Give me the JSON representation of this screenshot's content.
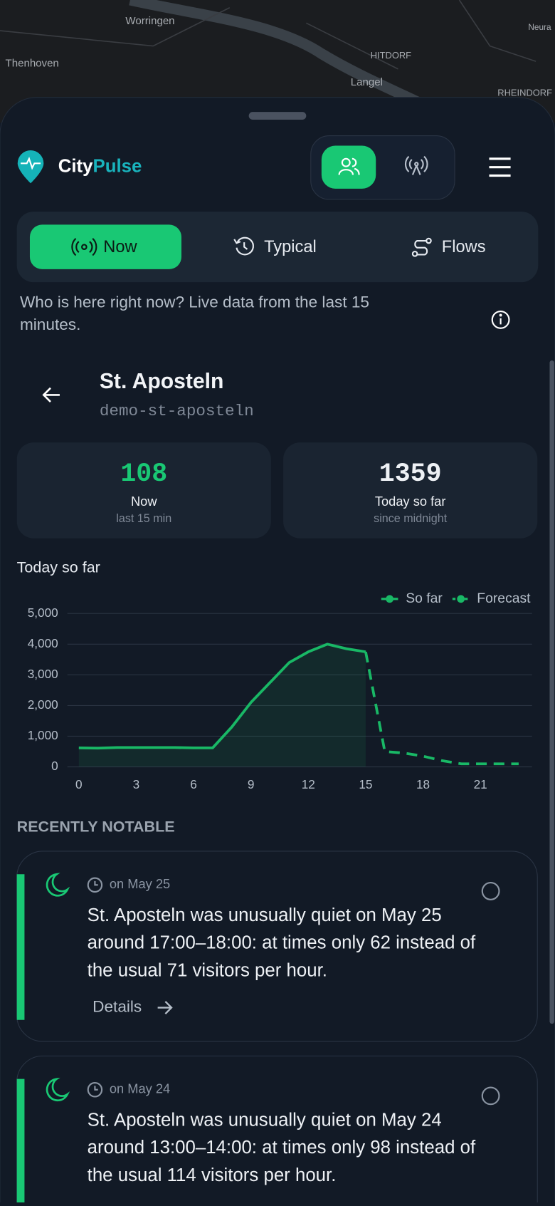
{
  "map": {
    "labels": [
      "Worringen",
      "Thenhoven",
      "HITDORF",
      "Langel",
      "Neura",
      "RHEINDORF"
    ]
  },
  "header": {
    "brand_part1": "City",
    "brand_part2": "Pulse"
  },
  "tabs": [
    "Now",
    "Typical",
    "Flows"
  ],
  "description": "Who is here right now? Live data from the last 15 minutes.",
  "location": {
    "name": "St. Aposteln",
    "id": "demo-st-aposteln"
  },
  "stats": [
    {
      "value": "108",
      "label": "Now",
      "sub": "last 15 min"
    },
    {
      "value": "1359",
      "label": "Today so far",
      "sub": "since midnight"
    }
  ],
  "chart_data": {
    "type": "line",
    "title": "Today so far",
    "x": [
      0,
      1,
      2,
      3,
      4,
      5,
      6,
      7,
      8,
      9,
      10,
      11,
      12,
      13,
      14,
      15,
      16,
      17,
      18,
      19,
      20,
      21,
      22,
      23
    ],
    "series": [
      {
        "name": "So far",
        "color": "#19b866",
        "values": [
          620,
          610,
          630,
          630,
          630,
          630,
          620,
          620,
          1300,
          2100,
          2750,
          3400,
          3750,
          4000,
          3850,
          3750,
          null,
          null,
          null,
          null,
          null,
          null,
          null,
          null
        ]
      },
      {
        "name": "Forecast",
        "color": "#19b866",
        "dashed": true,
        "values": [
          null,
          null,
          null,
          null,
          null,
          null,
          null,
          null,
          null,
          null,
          null,
          null,
          null,
          null,
          null,
          3750,
          500,
          450,
          350,
          200,
          100,
          100,
          100,
          100
        ]
      }
    ],
    "xlim": [
      -0.6,
      23.7
    ],
    "xticks": [
      0,
      3,
      6,
      9,
      12,
      15,
      18,
      21
    ],
    "ylim": [
      0,
      5000
    ],
    "yticks": [
      0,
      {
        "value": 1000,
        "label": "1,000"
      },
      {
        "value": 2000,
        "label": "2,000"
      },
      {
        "value": 3000,
        "label": "3,000"
      },
      {
        "value": 4000,
        "label": "4,000"
      },
      {
        "value": 5000,
        "label": "5,000"
      }
    ],
    "grid": true,
    "legend": "top-right"
  },
  "notable": {
    "title": "RECENTLY NOTABLE",
    "items": [
      {
        "date": "on May 25",
        "text": "St. Aposteln was unusually quiet on May 25 around 17:00–18:00: at times only 62 instead of the usual 71 visitors per hour.",
        "action": "Details"
      },
      {
        "date": "on May 24",
        "text": "St. Aposteln was unusually quiet on May 24 around 13:00–14:00: at times only 98 instead of the usual 114 visitors per hour."
      }
    ]
  }
}
